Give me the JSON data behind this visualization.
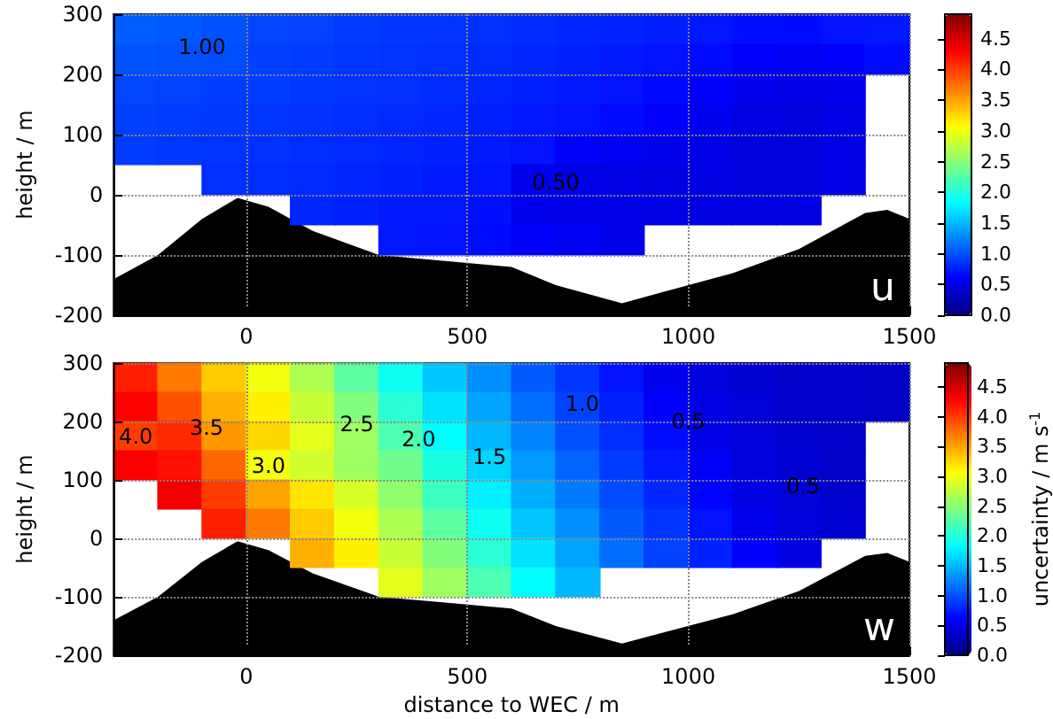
{
  "chart_data": [
    {
      "type": "scatter",
      "title": "u",
      "ylabel": "height / m",
      "xlim": [
        -300,
        1500
      ],
      "xticks": [
        0,
        500,
        1000,
        1500
      ],
      "ylim": [
        -200,
        300
      ],
      "yticks": [
        -200,
        -100,
        0,
        100,
        200,
        300
      ],
      "grid": true,
      "marker": "square",
      "clim": [
        0,
        4.9
      ],
      "cticks": [
        {
          "value": 0,
          "label": "0.0"
        },
        0.5,
        {
          "value": 1,
          "label": "1.0"
        },
        1.5,
        {
          "value": 2,
          "label": "2.0"
        },
        2.5,
        {
          "value": 3,
          "label": "3.0"
        },
        3.5,
        {
          "value": 4,
          "label": "4.0"
        },
        4.5
      ],
      "x": [
        -250,
        -150,
        -50,
        50,
        150,
        250,
        350,
        450,
        550,
        650,
        750,
        850,
        950,
        1050,
        1150,
        1250,
        1350,
        1450,
        -250,
        -150,
        -50,
        50,
        150,
        250,
        350,
        450,
        550,
        650,
        750,
        850,
        950,
        1050,
        1150,
        1250,
        1350,
        1450,
        -250,
        -150,
        -50,
        50,
        150,
        250,
        350,
        450,
        550,
        650,
        750,
        850,
        950,
        1050,
        1150,
        1250,
        1350,
        -250,
        -150,
        -50,
        50,
        150,
        250,
        350,
        450,
        550,
        650,
        750,
        850,
        950,
        1050,
        1150,
        1250,
        1350,
        -250,
        -150,
        -50,
        50,
        150,
        250,
        350,
        450,
        550,
        650,
        750,
        850,
        950,
        1050,
        1150,
        1250,
        1350,
        -50,
        50,
        150,
        250,
        350,
        450,
        550,
        650,
        750,
        850,
        950,
        1050,
        1150,
        1250,
        1350,
        150,
        250,
        350,
        450,
        550,
        650,
        750,
        850,
        950,
        1050,
        1150,
        1250,
        350,
        450,
        550,
        650,
        750,
        850
      ],
      "values": [
        275,
        275,
        275,
        275,
        275,
        275,
        275,
        275,
        275,
        275,
        275,
        275,
        275,
        275,
        275,
        275,
        275,
        275,
        225,
        225,
        225,
        225,
        225,
        225,
        225,
        225,
        225,
        225,
        225,
        225,
        225,
        225,
        225,
        225,
        225,
        225,
        175,
        175,
        175,
        175,
        175,
        175,
        175,
        175,
        175,
        175,
        175,
        175,
        175,
        175,
        175,
        175,
        175,
        125,
        125,
        125,
        125,
        125,
        125,
        125,
        125,
        125,
        125,
        125,
        125,
        125,
        125,
        125,
        125,
        125,
        75,
        75,
        75,
        75,
        75,
        75,
        75,
        75,
        75,
        75,
        75,
        75,
        75,
        75,
        75,
        75,
        75,
        25,
        25,
        25,
        25,
        25,
        25,
        25,
        25,
        25,
        25,
        25,
        25,
        25,
        25,
        25,
        -25,
        -25,
        -25,
        -25,
        -25,
        -25,
        -25,
        -25,
        -25,
        -25,
        -25,
        -25,
        -75,
        -75,
        -75,
        -75,
        -75,
        -75
      ],
      "cvalues": [
        1.06,
        1.04,
        1.01,
        0.95,
        0.93,
        0.9,
        0.88,
        0.86,
        0.84,
        0.82,
        0.8,
        0.78,
        0.75,
        0.72,
        0.68,
        0.66,
        0.7,
        0.72,
        1.02,
        1.0,
        0.98,
        0.92,
        0.9,
        0.88,
        0.86,
        0.84,
        0.82,
        0.8,
        0.77,
        0.74,
        0.7,
        0.66,
        0.6,
        0.56,
        0.6,
        0.66,
        0.95,
        0.93,
        0.91,
        0.9,
        0.88,
        0.86,
        0.84,
        0.82,
        0.79,
        0.76,
        0.73,
        0.7,
        0.65,
        0.58,
        0.52,
        0.5,
        0.52,
        0.92,
        0.9,
        0.89,
        0.87,
        0.85,
        0.83,
        0.81,
        0.79,
        0.76,
        0.73,
        0.7,
        0.66,
        0.6,
        0.54,
        0.48,
        0.46,
        0.5,
        0.9,
        0.88,
        0.86,
        0.85,
        0.83,
        0.81,
        0.79,
        0.77,
        0.74,
        0.7,
        0.58,
        0.55,
        0.52,
        0.5,
        0.46,
        0.45,
        0.5,
        0.84,
        0.83,
        0.81,
        0.79,
        0.77,
        0.74,
        0.71,
        0.52,
        0.5,
        0.49,
        0.48,
        0.48,
        0.46,
        0.46,
        0.5,
        0.79,
        0.77,
        0.74,
        0.72,
        0.68,
        0.52,
        0.5,
        0.5,
        0.5,
        0.48,
        0.47,
        0.48,
        0.72,
        0.7,
        0.66,
        0.6,
        0.55,
        0.52
      ],
      "annotations": [
        {
          "text": "1.00",
          "x": -100,
          "y": 245
        },
        {
          "text": "0.50",
          "x": 700,
          "y": 20
        }
      ]
    },
    {
      "type": "scatter",
      "title": "w",
      "xlabel": "distance to WEC / m",
      "ylabel": "height / m",
      "clabel": "uncertainty / m s$^{-1}$",
      "xlim": [
        -300,
        1500
      ],
      "xticks": [
        0,
        500,
        1000,
        1500
      ],
      "ylim": [
        -200,
        300
      ],
      "yticks": [
        -200,
        -100,
        0,
        100,
        200,
        300
      ],
      "grid": true,
      "marker": "square",
      "clim": [
        0,
        4.9
      ],
      "cticks": [
        {
          "value": 0,
          "label": "0.0"
        },
        0.5,
        {
          "value": 1,
          "label": "1.0"
        },
        1.5,
        {
          "value": 2,
          "label": "2.0"
        },
        2.5,
        {
          "value": 3,
          "label": "3.0"
        },
        3.5,
        {
          "value": 4,
          "label": "4.0"
        },
        4.5
      ],
      "x": [
        -250,
        -150,
        -50,
        50,
        150,
        250,
        350,
        450,
        550,
        650,
        750,
        850,
        950,
        1050,
        1150,
        1250,
        1350,
        1450,
        -250,
        -150,
        -50,
        50,
        150,
        250,
        350,
        450,
        550,
        650,
        750,
        850,
        950,
        1050,
        1150,
        1250,
        1350,
        1450,
        -250,
        -150,
        -50,
        50,
        150,
        250,
        350,
        450,
        550,
        650,
        750,
        850,
        950,
        1050,
        1150,
        1250,
        1350,
        -250,
        -150,
        -50,
        50,
        150,
        250,
        350,
        450,
        550,
        650,
        750,
        850,
        950,
        1050,
        1150,
        1250,
        1350,
        -150,
        -50,
        50,
        150,
        250,
        350,
        450,
        550,
        650,
        750,
        850,
        950,
        1050,
        1150,
        1250,
        1350,
        -50,
        50,
        150,
        250,
        350,
        450,
        550,
        650,
        750,
        850,
        950,
        1050,
        1150,
        1250,
        1350,
        150,
        250,
        350,
        450,
        550,
        650,
        750,
        850,
        950,
        1050,
        1150,
        1250,
        350,
        450,
        550,
        650,
        750
      ],
      "values": [
        275,
        275,
        275,
        275,
        275,
        275,
        275,
        275,
        275,
        275,
        275,
        275,
        275,
        275,
        275,
        275,
        275,
        275,
        225,
        225,
        225,
        225,
        225,
        225,
        225,
        225,
        225,
        225,
        225,
        225,
        225,
        225,
        225,
        225,
        225,
        225,
        175,
        175,
        175,
        175,
        175,
        175,
        175,
        175,
        175,
        175,
        175,
        175,
        175,
        175,
        175,
        175,
        175,
        125,
        125,
        125,
        125,
        125,
        125,
        125,
        125,
        125,
        125,
        125,
        125,
        125,
        125,
        125,
        125,
        125,
        75,
        75,
        75,
        75,
        75,
        75,
        75,
        75,
        75,
        75,
        75,
        75,
        75,
        75,
        75,
        75,
        25,
        25,
        25,
        25,
        25,
        25,
        25,
        25,
        25,
        25,
        25,
        25,
        25,
        25,
        25,
        -25,
        -25,
        -25,
        -25,
        -25,
        -25,
        -25,
        -25,
        -25,
        -25,
        -25,
        -25,
        -75,
        -75,
        -75,
        -75,
        -75
      ],
      "cvalues": [
        4.14,
        3.7,
        3.31,
        3.0,
        2.67,
        2.29,
        1.9,
        1.57,
        1.3,
        1.05,
        0.87,
        0.7,
        0.53,
        0.45,
        0.39,
        0.35,
        0.35,
        0.34,
        4.28,
        3.9,
        3.44,
        3.13,
        2.8,
        2.46,
        2.04,
        1.7,
        1.4,
        1.15,
        0.93,
        0.77,
        0.6,
        0.48,
        0.42,
        0.36,
        0.35,
        0.34,
        4.0,
        4.09,
        3.56,
        3.25,
        2.93,
        2.6,
        2.21,
        1.83,
        1.5,
        1.25,
        1.0,
        0.83,
        0.67,
        0.5,
        0.44,
        0.38,
        0.35,
        4.3,
        4.21,
        3.8,
        3.0,
        2.85,
        2.6,
        2.38,
        1.97,
        1.63,
        1.35,
        1.1,
        0.9,
        0.73,
        0.57,
        0.46,
        0.4,
        0.36,
        4.35,
        4.0,
        3.5,
        3.19,
        2.87,
        2.53,
        2.13,
        1.77,
        1.45,
        1.2,
        0.97,
        0.8,
        0.63,
        0.49,
        0.43,
        0.38,
        4.14,
        3.7,
        3.31,
        3.0,
        2.67,
        2.29,
        1.9,
        1.57,
        1.3,
        1.05,
        0.87,
        0.7,
        0.53,
        0.45,
        0.4,
        3.44,
        3.13,
        2.8,
        2.46,
        2.04,
        1.7,
        1.4,
        1.15,
        0.93,
        0.77,
        0.6,
        0.48,
        2.93,
        2.6,
        2.21,
        1.83,
        1.5
      ],
      "annotations": [
        {
          "text": "4.0",
          "x": -250,
          "y": 175
        },
        {
          "text": "3.5",
          "x": -90,
          "y": 190
        },
        {
          "text": "3.0",
          "x": 50,
          "y": 125
        },
        {
          "text": "2.5",
          "x": 250,
          "y": 195
        },
        {
          "text": "2.0",
          "x": 390,
          "y": 170
        },
        {
          "text": "1.5",
          "x": 550,
          "y": 140
        },
        {
          "text": "1.0",
          "x": 760,
          "y": 230
        },
        {
          "text": "0.5",
          "x": 1000,
          "y": 200
        },
        {
          "text": "0.5",
          "x": 1260,
          "y": 90
        }
      ]
    }
  ]
}
